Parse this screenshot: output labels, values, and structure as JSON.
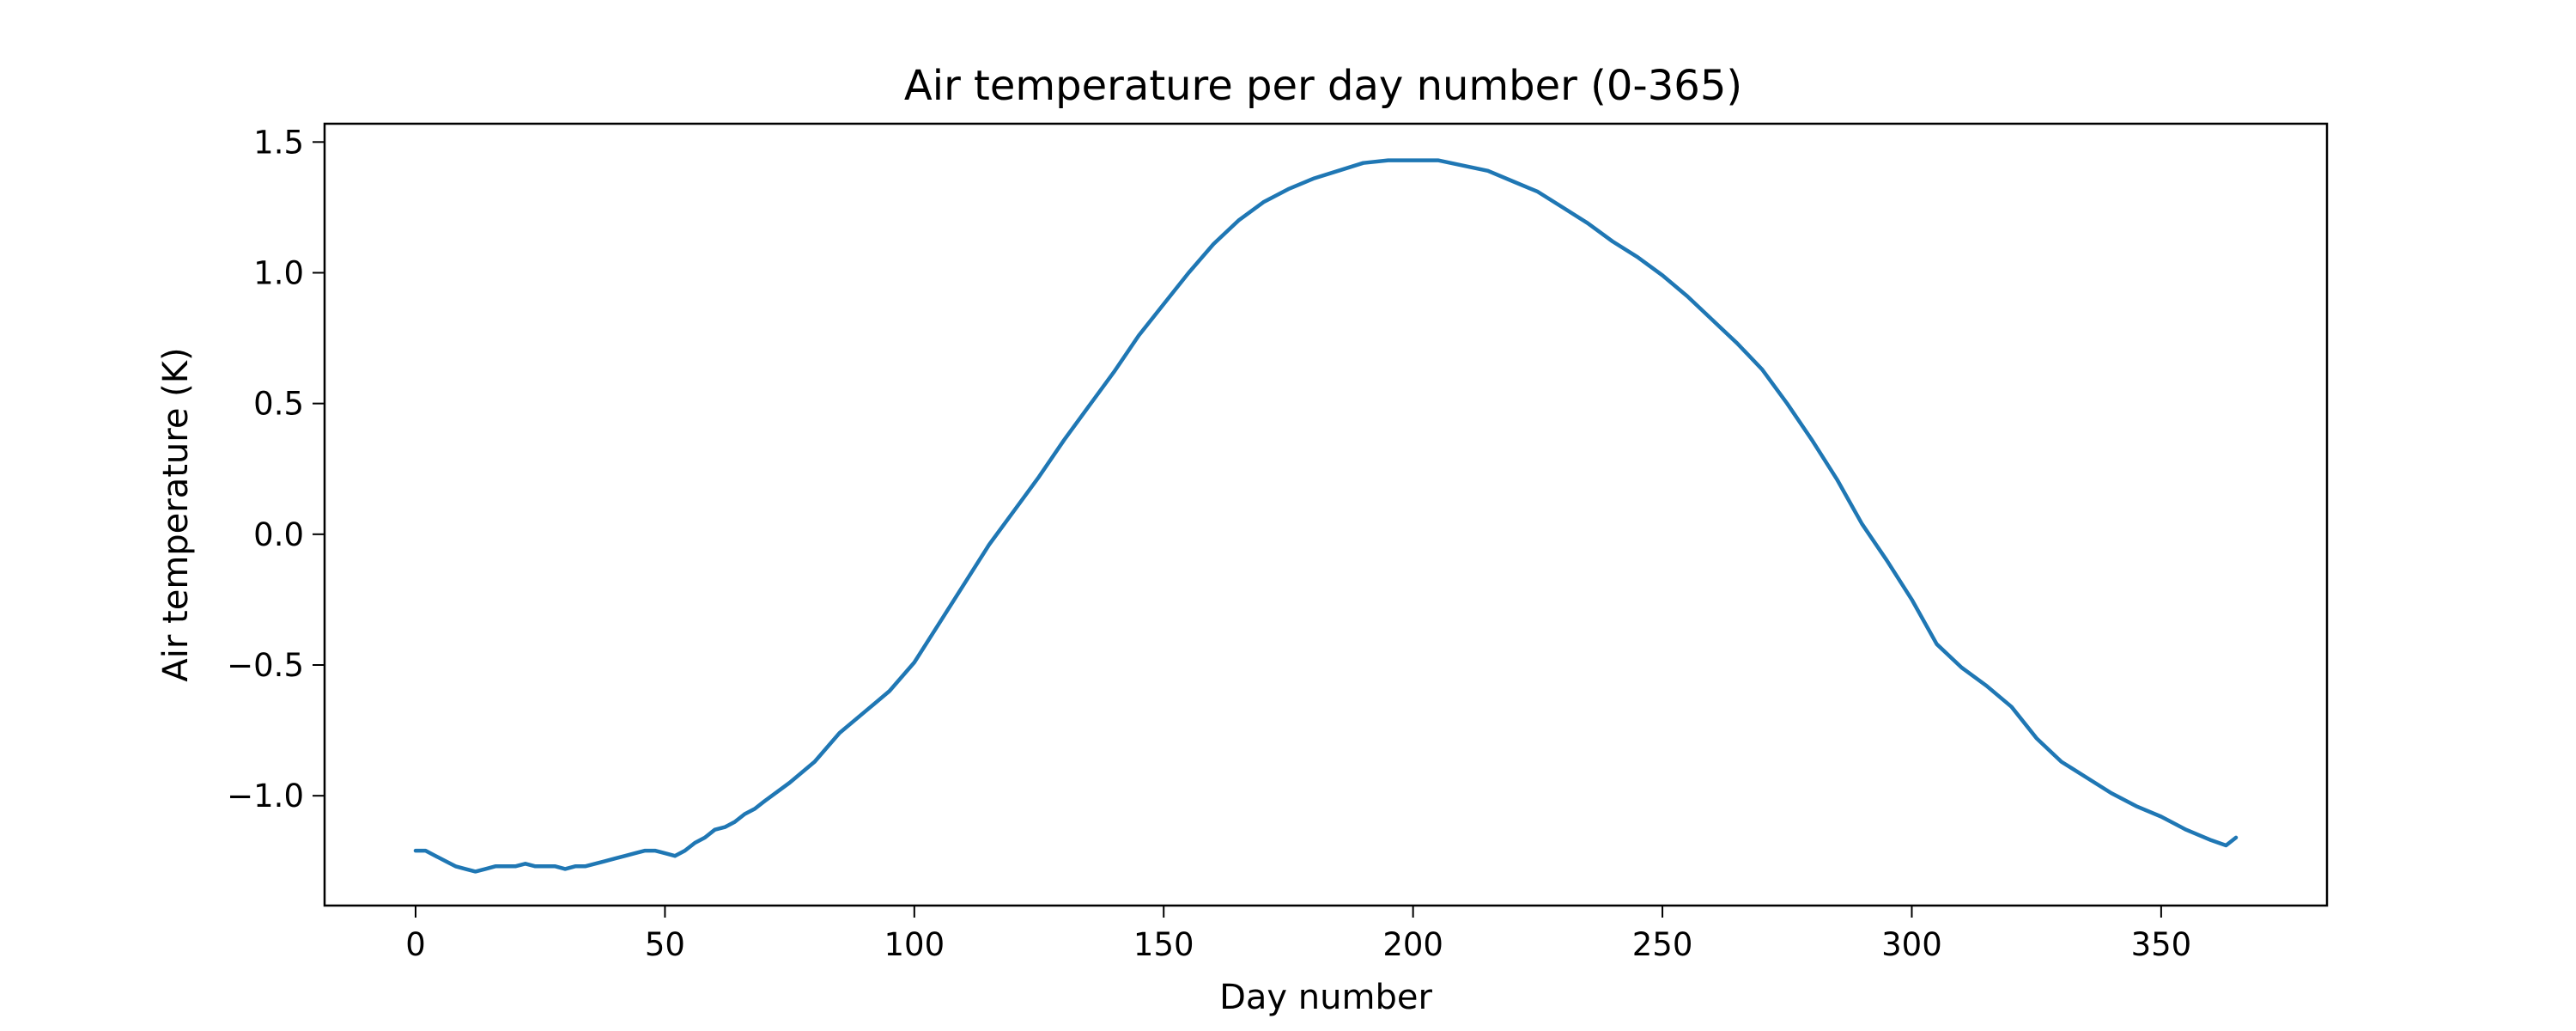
{
  "chart_data": {
    "type": "line",
    "title": "Air temperature per day number (0-365)",
    "xlabel": "Day number",
    "ylabel": "Air temperature (K)",
    "xlim": [
      -18.25,
      383.25
    ],
    "ylim": [
      -1.42,
      1.57
    ],
    "xticks": [
      {
        "value": 0,
        "label": "0"
      },
      {
        "value": 50,
        "label": "50"
      },
      {
        "value": 100,
        "label": "100"
      },
      {
        "value": 150,
        "label": "150"
      },
      {
        "value": 200,
        "label": "200"
      },
      {
        "value": 250,
        "label": "250"
      },
      {
        "value": 300,
        "label": "300"
      },
      {
        "value": 350,
        "label": "350"
      }
    ],
    "yticks": [
      {
        "value": -1.0,
        "label": "−1.0"
      },
      {
        "value": -0.5,
        "label": "−0.5"
      },
      {
        "value": 0.0,
        "label": "0.0"
      },
      {
        "value": 0.5,
        "label": "0.5"
      },
      {
        "value": 1.0,
        "label": "1.0"
      },
      {
        "value": 1.5,
        "label": "1.5"
      }
    ],
    "grid": false,
    "series": [
      {
        "color": "#1f77b4",
        "x": [
          0,
          2,
          4,
          6,
          8,
          10,
          12,
          14,
          16,
          18,
          20,
          22,
          24,
          26,
          28,
          30,
          32,
          34,
          36,
          38,
          40,
          42,
          44,
          46,
          48,
          50,
          52,
          54,
          56,
          58,
          60,
          62,
          64,
          66,
          68,
          70,
          75,
          80,
          85,
          90,
          95,
          100,
          105,
          110,
          115,
          120,
          125,
          130,
          135,
          140,
          145,
          150,
          155,
          160,
          165,
          170,
          175,
          180,
          185,
          190,
          195,
          200,
          205,
          210,
          215,
          220,
          225,
          230,
          235,
          240,
          245,
          250,
          255,
          260,
          265,
          270,
          275,
          280,
          285,
          290,
          295,
          300,
          305,
          310,
          315,
          320,
          325,
          330,
          335,
          340,
          345,
          350,
          355,
          360,
          363,
          365
        ],
        "y": [
          -1.21,
          -1.21,
          -1.23,
          -1.25,
          -1.27,
          -1.28,
          -1.29,
          -1.28,
          -1.27,
          -1.27,
          -1.27,
          -1.26,
          -1.27,
          -1.27,
          -1.27,
          -1.28,
          -1.27,
          -1.27,
          -1.26,
          -1.25,
          -1.24,
          -1.23,
          -1.22,
          -1.21,
          -1.21,
          -1.22,
          -1.23,
          -1.21,
          -1.18,
          -1.16,
          -1.13,
          -1.12,
          -1.1,
          -1.07,
          -1.05,
          -1.02,
          -0.95,
          -0.87,
          -0.76,
          -0.68,
          -0.6,
          -0.49,
          -0.34,
          -0.19,
          -0.04,
          0.09,
          0.22,
          0.36,
          0.49,
          0.62,
          0.76,
          0.88,
          1.0,
          1.11,
          1.2,
          1.27,
          1.32,
          1.36,
          1.39,
          1.42,
          1.43,
          1.43,
          1.43,
          1.41,
          1.39,
          1.35,
          1.31,
          1.25,
          1.19,
          1.12,
          1.06,
          0.99,
          0.91,
          0.82,
          0.73,
          0.63,
          0.5,
          0.36,
          0.21,
          0.04,
          -0.1,
          -0.25,
          -0.42,
          -0.51,
          -0.58,
          -0.66,
          -0.78,
          -0.87,
          -0.93,
          -0.99,
          -1.04,
          -1.08,
          -1.13,
          -1.17,
          -1.19,
          -1.16
        ]
      }
    ]
  }
}
